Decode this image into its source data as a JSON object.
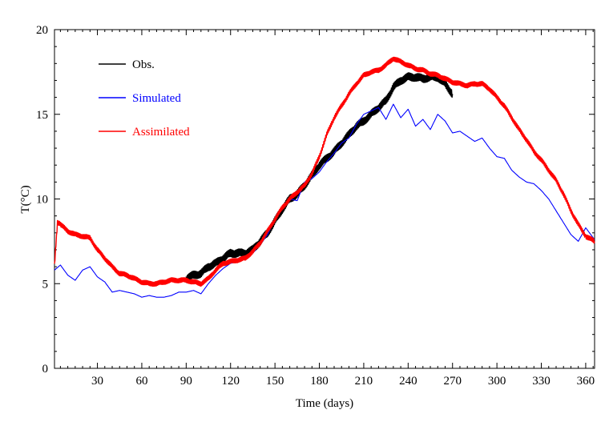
{
  "chart_data": {
    "type": "line",
    "xlabel": "Time (days)",
    "ylabel": "T(°C)",
    "xlim": [
      1,
      366
    ],
    "ylim": [
      0,
      20
    ],
    "xticks": [
      30,
      60,
      90,
      120,
      150,
      180,
      210,
      240,
      270,
      300,
      330,
      360
    ],
    "yticks": [
      0,
      5,
      10,
      15,
      20
    ],
    "grid": false,
    "legend_position": "top-left",
    "series": [
      {
        "name": "Obs.",
        "color": "#000000",
        "x": [
          90,
          95,
          100,
          105,
          110,
          115,
          120,
          125,
          130,
          135,
          140,
          145,
          150,
          155,
          160,
          165,
          170,
          175,
          180,
          185,
          190,
          195,
          200,
          205,
          210,
          215,
          220,
          225,
          230,
          235,
          240,
          245,
          250,
          255,
          260,
          265,
          270
        ],
        "y": [
          5.3,
          5.5,
          5.6,
          6.0,
          6.2,
          6.5,
          6.8,
          6.8,
          6.8,
          7.0,
          7.5,
          8.0,
          8.7,
          9.4,
          10.0,
          10.3,
          10.8,
          11.4,
          12.0,
          12.4,
          12.8,
          13.3,
          13.8,
          14.3,
          14.6,
          15.0,
          15.4,
          15.8,
          16.6,
          17.0,
          17.2,
          17.2,
          17.1,
          17.2,
          17.2,
          16.8,
          16.2
        ],
        "noise": 0.25
      },
      {
        "name": "Simulated",
        "color": "#0000ff",
        "x": [
          1,
          5,
          10,
          15,
          20,
          25,
          30,
          35,
          40,
          45,
          50,
          55,
          60,
          65,
          70,
          75,
          80,
          85,
          90,
          95,
          100,
          105,
          110,
          115,
          120,
          125,
          130,
          135,
          140,
          145,
          150,
          155,
          160,
          165,
          170,
          175,
          180,
          185,
          190,
          195,
          200,
          205,
          210,
          215,
          220,
          225,
          230,
          235,
          240,
          245,
          250,
          255,
          260,
          265,
          270,
          275,
          280,
          285,
          290,
          295,
          300,
          305,
          310,
          315,
          320,
          325,
          330,
          335,
          340,
          345,
          350,
          355,
          360,
          366
        ],
        "y": [
          5.8,
          6.1,
          5.5,
          5.2,
          5.8,
          6.0,
          5.4,
          5.1,
          4.5,
          4.6,
          4.5,
          4.4,
          4.2,
          4.3,
          4.2,
          4.2,
          4.3,
          4.5,
          4.5,
          4.6,
          4.4,
          5.0,
          5.5,
          5.9,
          6.2,
          6.3,
          6.5,
          6.8,
          7.3,
          7.9,
          8.8,
          9.5,
          10.0,
          9.9,
          11.0,
          11.2,
          11.6,
          12.2,
          12.7,
          13.3,
          13.6,
          14.4,
          15.0,
          15.2,
          15.4,
          14.7,
          15.6,
          14.8,
          15.3,
          14.3,
          14.7,
          14.1,
          15.0,
          14.6,
          13.9,
          14.0,
          13.7,
          13.4,
          13.6,
          13.0,
          12.5,
          12.4,
          11.7,
          11.3,
          11.0,
          10.9,
          10.5,
          10.0,
          9.3,
          8.6,
          7.9,
          7.5,
          8.3,
          7.6
        ],
        "noise": 0
      },
      {
        "name": "Assimilated",
        "color": "#ff0000",
        "x": [
          1,
          3,
          5,
          10,
          15,
          20,
          25,
          30,
          35,
          40,
          45,
          50,
          55,
          60,
          65,
          70,
          75,
          80,
          85,
          90,
          95,
          100,
          105,
          110,
          115,
          120,
          125,
          130,
          135,
          140,
          145,
          150,
          155,
          160,
          165,
          170,
          175,
          180,
          185,
          190,
          195,
          200,
          205,
          210,
          215,
          220,
          225,
          230,
          235,
          240,
          245,
          250,
          255,
          260,
          265,
          270,
          275,
          280,
          285,
          290,
          295,
          300,
          305,
          310,
          315,
          320,
          325,
          330,
          335,
          340,
          345,
          350,
          355,
          360,
          366
        ],
        "y": [
          6.1,
          8.6,
          8.5,
          8.1,
          7.9,
          7.8,
          7.7,
          7.0,
          6.5,
          6.0,
          5.6,
          5.5,
          5.3,
          5.1,
          5.0,
          5.0,
          5.1,
          5.2,
          5.2,
          5.2,
          5.1,
          5.0,
          5.3,
          5.8,
          6.2,
          6.3,
          6.4,
          6.5,
          6.9,
          7.4,
          8.1,
          8.8,
          9.5,
          10.0,
          10.4,
          10.8,
          11.5,
          12.5,
          13.8,
          14.8,
          15.5,
          16.2,
          16.8,
          17.3,
          17.5,
          17.6,
          17.9,
          18.3,
          18.1,
          17.9,
          17.7,
          17.6,
          17.4,
          17.3,
          17.1,
          16.9,
          16.8,
          16.7,
          16.8,
          16.8,
          16.5,
          16.0,
          15.5,
          14.8,
          14.1,
          13.5,
          12.8,
          12.3,
          11.7,
          11.1,
          10.3,
          9.3,
          8.5,
          7.8,
          7.5
        ],
        "noise": 0.15
      }
    ]
  }
}
